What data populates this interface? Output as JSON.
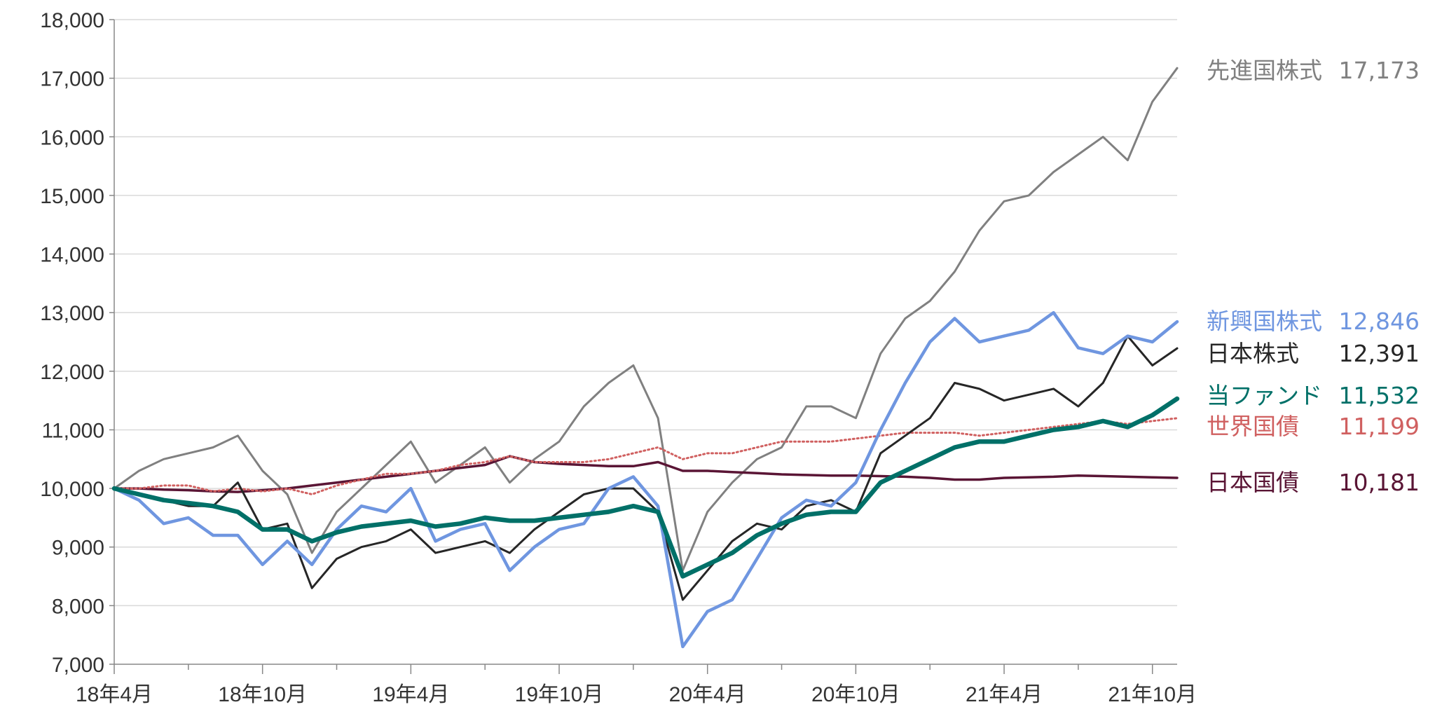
{
  "chart_data": {
    "type": "line",
    "title": "",
    "xlabel": "",
    "ylabel": "",
    "ylim": [
      7000,
      18000
    ],
    "y_ticks": [
      7000,
      8000,
      9000,
      10000,
      11000,
      12000,
      13000,
      14000,
      15000,
      16000,
      17000,
      18000
    ],
    "y_tick_labels": [
      "7,000",
      "8,000",
      "9,000",
      "10,000",
      "11,000",
      "12,000",
      "13,000",
      "14,000",
      "15,000",
      "16,000",
      "17,000",
      "18,000"
    ],
    "x_range_months": [
      "2018-04",
      "2021-11"
    ],
    "x_tick_labels": [
      "18年4月",
      "18年10月",
      "19年4月",
      "19年10月",
      "20年4月",
      "20年10月",
      "21年4月",
      "21年10月"
    ],
    "grid": true,
    "legend": "right-end labels",
    "series": [
      {
        "name": "先進国株式",
        "value_label": "17,173",
        "color": "#808080",
        "style": "solid",
        "points": [
          [
            "2018-04",
            10000
          ],
          [
            "2018-05",
            10300
          ],
          [
            "2018-06",
            10500
          ],
          [
            "2018-07",
            10600
          ],
          [
            "2018-08",
            10700
          ],
          [
            "2018-09",
            10900
          ],
          [
            "2018-10",
            10300
          ],
          [
            "2018-11",
            9900
          ],
          [
            "2018-12",
            8900
          ],
          [
            "2019-01",
            9600
          ],
          [
            "2019-02",
            10000
          ],
          [
            "2019-03",
            10400
          ],
          [
            "2019-04",
            10800
          ],
          [
            "2019-05",
            10100
          ],
          [
            "2019-06",
            10400
          ],
          [
            "2019-07",
            10700
          ],
          [
            "2019-08",
            10100
          ],
          [
            "2019-09",
            10500
          ],
          [
            "2019-10",
            10800
          ],
          [
            "2019-11",
            11400
          ],
          [
            "2019-12",
            11800
          ],
          [
            "2020-01",
            12100
          ],
          [
            "2020-02",
            11200
          ],
          [
            "2020-03",
            8600
          ],
          [
            "2020-04",
            9600
          ],
          [
            "2020-05",
            10100
          ],
          [
            "2020-06",
            10500
          ],
          [
            "2020-07",
            10700
          ],
          [
            "2020-08",
            11400
          ],
          [
            "2020-09",
            11400
          ],
          [
            "2020-10",
            11200
          ],
          [
            "2020-11",
            12300
          ],
          [
            "2020-12",
            12900
          ],
          [
            "2021-01",
            13200
          ],
          [
            "2021-02",
            13700
          ],
          [
            "2021-03",
            14400
          ],
          [
            "2021-04",
            14900
          ],
          [
            "2021-05",
            15000
          ],
          [
            "2021-06",
            15400
          ],
          [
            "2021-07",
            15700
          ],
          [
            "2021-08",
            16000
          ],
          [
            "2021-09",
            15600
          ],
          [
            "2021-10",
            16600
          ],
          [
            "2021-11",
            17173
          ]
        ]
      },
      {
        "name": "新興国株式",
        "value_label": "12,846",
        "color": "#6F96E0",
        "style": "solid",
        "points": [
          [
            "2018-04",
            10000
          ],
          [
            "2018-05",
            9800
          ],
          [
            "2018-06",
            9400
          ],
          [
            "2018-07",
            9500
          ],
          [
            "2018-08",
            9200
          ],
          [
            "2018-09",
            9200
          ],
          [
            "2018-10",
            8700
          ],
          [
            "2018-11",
            9100
          ],
          [
            "2018-12",
            8700
          ],
          [
            "2019-01",
            9300
          ],
          [
            "2019-02",
            9700
          ],
          [
            "2019-03",
            9600
          ],
          [
            "2019-04",
            10000
          ],
          [
            "2019-05",
            9100
          ],
          [
            "2019-06",
            9300
          ],
          [
            "2019-07",
            9400
          ],
          [
            "2019-08",
            8600
          ],
          [
            "2019-09",
            9000
          ],
          [
            "2019-10",
            9300
          ],
          [
            "2019-11",
            9400
          ],
          [
            "2019-12",
            10000
          ],
          [
            "2020-01",
            10200
          ],
          [
            "2020-02",
            9700
          ],
          [
            "2020-03",
            7300
          ],
          [
            "2020-04",
            7900
          ],
          [
            "2020-05",
            8100
          ],
          [
            "2020-06",
            8800
          ],
          [
            "2020-07",
            9500
          ],
          [
            "2020-08",
            9800
          ],
          [
            "2020-09",
            9700
          ],
          [
            "2020-10",
            10100
          ],
          [
            "2020-11",
            11000
          ],
          [
            "2020-12",
            11800
          ],
          [
            "2021-01",
            12500
          ],
          [
            "2021-02",
            12900
          ],
          [
            "2021-03",
            12500
          ],
          [
            "2021-04",
            12600
          ],
          [
            "2021-05",
            12700
          ],
          [
            "2021-06",
            13000
          ],
          [
            "2021-07",
            12400
          ],
          [
            "2021-08",
            12300
          ],
          [
            "2021-09",
            12600
          ],
          [
            "2021-10",
            12500
          ],
          [
            "2021-11",
            12846
          ]
        ]
      },
      {
        "name": "日本株式",
        "value_label": "12,391",
        "color": "#262626",
        "style": "solid",
        "points": [
          [
            "2018-04",
            10000
          ],
          [
            "2018-05",
            9900
          ],
          [
            "2018-06",
            9800
          ],
          [
            "2018-07",
            9700
          ],
          [
            "2018-08",
            9700
          ],
          [
            "2018-09",
            10100
          ],
          [
            "2018-10",
            9300
          ],
          [
            "2018-11",
            9400
          ],
          [
            "2018-12",
            8300
          ],
          [
            "2019-01",
            8800
          ],
          [
            "2019-02",
            9000
          ],
          [
            "2019-03",
            9100
          ],
          [
            "2019-04",
            9300
          ],
          [
            "2019-05",
            8900
          ],
          [
            "2019-06",
            9000
          ],
          [
            "2019-07",
            9100
          ],
          [
            "2019-08",
            8900
          ],
          [
            "2019-09",
            9300
          ],
          [
            "2019-10",
            9600
          ],
          [
            "2019-11",
            9900
          ],
          [
            "2019-12",
            10000
          ],
          [
            "2020-01",
            10000
          ],
          [
            "2020-02",
            9600
          ],
          [
            "2020-03",
            8100
          ],
          [
            "2020-04",
            8600
          ],
          [
            "2020-05",
            9100
          ],
          [
            "2020-06",
            9400
          ],
          [
            "2020-07",
            9300
          ],
          [
            "2020-08",
            9700
          ],
          [
            "2020-09",
            9800
          ],
          [
            "2020-10",
            9600
          ],
          [
            "2020-11",
            10600
          ],
          [
            "2020-12",
            10900
          ],
          [
            "2021-01",
            11200
          ],
          [
            "2021-02",
            11800
          ],
          [
            "2021-03",
            11700
          ],
          [
            "2021-04",
            11500
          ],
          [
            "2021-05",
            11600
          ],
          [
            "2021-06",
            11700
          ],
          [
            "2021-07",
            11400
          ],
          [
            "2021-08",
            11800
          ],
          [
            "2021-09",
            12600
          ],
          [
            "2021-10",
            12100
          ],
          [
            "2021-11",
            12391
          ]
        ]
      },
      {
        "name": "当ファンド",
        "value_label": "11,532",
        "color": "#007068",
        "style": "thick",
        "points": [
          [
            "2018-04",
            10000
          ],
          [
            "2018-05",
            9900
          ],
          [
            "2018-06",
            9800
          ],
          [
            "2018-07",
            9750
          ],
          [
            "2018-08",
            9700
          ],
          [
            "2018-09",
            9600
          ],
          [
            "2018-10",
            9300
          ],
          [
            "2018-11",
            9300
          ],
          [
            "2018-12",
            9100
          ],
          [
            "2019-01",
            9250
          ],
          [
            "2019-02",
            9350
          ],
          [
            "2019-03",
            9400
          ],
          [
            "2019-04",
            9450
          ],
          [
            "2019-05",
            9350
          ],
          [
            "2019-06",
            9400
          ],
          [
            "2019-07",
            9500
          ],
          [
            "2019-08",
            9450
          ],
          [
            "2019-09",
            9450
          ],
          [
            "2019-10",
            9500
          ],
          [
            "2019-11",
            9550
          ],
          [
            "2019-12",
            9600
          ],
          [
            "2020-01",
            9700
          ],
          [
            "2020-02",
            9600
          ],
          [
            "2020-03",
            8500
          ],
          [
            "2020-04",
            8700
          ],
          [
            "2020-05",
            8900
          ],
          [
            "2020-06",
            9200
          ],
          [
            "2020-07",
            9400
          ],
          [
            "2020-08",
            9550
          ],
          [
            "2020-09",
            9600
          ],
          [
            "2020-10",
            9600
          ],
          [
            "2020-11",
            10100
          ],
          [
            "2020-12",
            10300
          ],
          [
            "2021-01",
            10500
          ],
          [
            "2021-02",
            10700
          ],
          [
            "2021-03",
            10800
          ],
          [
            "2021-04",
            10800
          ],
          [
            "2021-05",
            10900
          ],
          [
            "2021-06",
            11000
          ],
          [
            "2021-07",
            11050
          ],
          [
            "2021-08",
            11150
          ],
          [
            "2021-09",
            11050
          ],
          [
            "2021-10",
            11250
          ],
          [
            "2021-11",
            11532
          ]
        ]
      },
      {
        "name": "世界国債",
        "value_label": "11,199",
        "color": "#D06060",
        "style": "dotted",
        "points": [
          [
            "2018-04",
            10000
          ],
          [
            "2018-05",
            10000
          ],
          [
            "2018-06",
            10050
          ],
          [
            "2018-07",
            10050
          ],
          [
            "2018-08",
            9950
          ],
          [
            "2018-09",
            10000
          ],
          [
            "2018-10",
            9950
          ],
          [
            "2018-11",
            10000
          ],
          [
            "2018-12",
            9900
          ],
          [
            "2019-01",
            10050
          ],
          [
            "2019-02",
            10150
          ],
          [
            "2019-03",
            10250
          ],
          [
            "2019-04",
            10250
          ],
          [
            "2019-05",
            10300
          ],
          [
            "2019-06",
            10400
          ],
          [
            "2019-07",
            10450
          ],
          [
            "2019-08",
            10550
          ],
          [
            "2019-09",
            10450
          ],
          [
            "2019-10",
            10450
          ],
          [
            "2019-11",
            10450
          ],
          [
            "2019-12",
            10500
          ],
          [
            "2020-01",
            10600
          ],
          [
            "2020-02",
            10700
          ],
          [
            "2020-03",
            10500
          ],
          [
            "2020-04",
            10600
          ],
          [
            "2020-05",
            10600
          ],
          [
            "2020-06",
            10700
          ],
          [
            "2020-07",
            10800
          ],
          [
            "2020-08",
            10800
          ],
          [
            "2020-09",
            10800
          ],
          [
            "2020-10",
            10850
          ],
          [
            "2020-11",
            10900
          ],
          [
            "2020-12",
            10950
          ],
          [
            "2021-01",
            10950
          ],
          [
            "2021-02",
            10950
          ],
          [
            "2021-03",
            10900
          ],
          [
            "2021-04",
            10950
          ],
          [
            "2021-05",
            11000
          ],
          [
            "2021-06",
            11050
          ],
          [
            "2021-07",
            11100
          ],
          [
            "2021-08",
            11150
          ],
          [
            "2021-09",
            11100
          ],
          [
            "2021-10",
            11150
          ],
          [
            "2021-11",
            11199
          ]
        ]
      },
      {
        "name": "日本国債",
        "value_label": "10,181",
        "color": "#5A1535",
        "style": "solid",
        "points": [
          [
            "2018-04",
            10000
          ],
          [
            "2018-05",
            10000
          ],
          [
            "2018-06",
            9980
          ],
          [
            "2018-07",
            9970
          ],
          [
            "2018-08",
            9950
          ],
          [
            "2018-09",
            9940
          ],
          [
            "2018-10",
            9970
          ],
          [
            "2018-11",
            10000
          ],
          [
            "2018-12",
            10050
          ],
          [
            "2019-01",
            10100
          ],
          [
            "2019-02",
            10150
          ],
          [
            "2019-03",
            10200
          ],
          [
            "2019-04",
            10250
          ],
          [
            "2019-05",
            10300
          ],
          [
            "2019-06",
            10350
          ],
          [
            "2019-07",
            10400
          ],
          [
            "2019-08",
            10550
          ],
          [
            "2019-09",
            10450
          ],
          [
            "2019-10",
            10420
          ],
          [
            "2019-11",
            10400
          ],
          [
            "2019-12",
            10380
          ],
          [
            "2020-01",
            10380
          ],
          [
            "2020-02",
            10450
          ],
          [
            "2020-03",
            10300
          ],
          [
            "2020-04",
            10300
          ],
          [
            "2020-05",
            10280
          ],
          [
            "2020-06",
            10260
          ],
          [
            "2020-07",
            10240
          ],
          [
            "2020-08",
            10230
          ],
          [
            "2020-09",
            10220
          ],
          [
            "2020-10",
            10220
          ],
          [
            "2020-11",
            10210
          ],
          [
            "2020-12",
            10200
          ],
          [
            "2021-01",
            10180
          ],
          [
            "2021-02",
            10150
          ],
          [
            "2021-03",
            10150
          ],
          [
            "2021-04",
            10180
          ],
          [
            "2021-05",
            10190
          ],
          [
            "2021-06",
            10200
          ],
          [
            "2021-07",
            10220
          ],
          [
            "2021-08",
            10210
          ],
          [
            "2021-09",
            10200
          ],
          [
            "2021-10",
            10190
          ],
          [
            "2021-11",
            10181
          ]
        ]
      }
    ]
  }
}
